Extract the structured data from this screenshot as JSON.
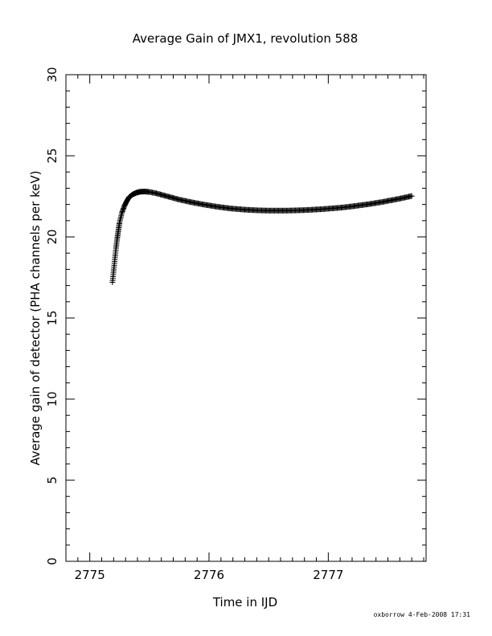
{
  "chart_data": {
    "type": "scatter",
    "title": "Average Gain of JMX1, revolution 588",
    "xlabel": "Time in IJD",
    "ylabel": "Average gain of detector (PHA channels per keV)",
    "xlim": [
      2774.8,
      2777.82
    ],
    "ylim": [
      0,
      30
    ],
    "xticks": [
      2775,
      2776,
      2777
    ],
    "yticks": [
      0,
      5,
      10,
      15,
      20,
      25,
      30
    ],
    "x_minor_step": 0.1,
    "y_minor_step": 1,
    "grid": false,
    "marker": "plus",
    "color": "#000000",
    "series": [
      {
        "x": [
          2775.19,
          2775.2,
          2775.21,
          2775.22,
          2775.23,
          2775.24,
          2775.25,
          2775.27,
          2775.29,
          2775.31,
          2775.33,
          2775.36,
          2775.39,
          2775.42,
          2775.46,
          2775.5,
          2775.55,
          2775.6,
          2775.65,
          2775.7,
          2775.75,
          2775.8,
          2775.85,
          2775.9,
          2775.95,
          2776.0,
          2776.05,
          2776.1,
          2776.15,
          2776.2,
          2776.25,
          2776.3,
          2776.35,
          2776.4,
          2776.45,
          2776.5,
          2776.55,
          2776.6,
          2776.65,
          2776.7,
          2776.75,
          2776.8,
          2776.85,
          2776.9,
          2776.95,
          2777.0,
          2777.05,
          2777.1,
          2777.15,
          2777.2,
          2777.25,
          2777.3,
          2777.35,
          2777.4,
          2777.45,
          2777.5,
          2777.55,
          2777.6,
          2777.65,
          2777.7
        ],
        "y": [
          17.2,
          17.9,
          18.6,
          19.3,
          19.9,
          20.4,
          20.9,
          21.5,
          21.9,
          22.2,
          22.45,
          22.62,
          22.72,
          22.78,
          22.8,
          22.77,
          22.7,
          22.6,
          22.5,
          22.4,
          22.3,
          22.22,
          22.14,
          22.07,
          22.0,
          21.94,
          21.88,
          21.83,
          21.78,
          21.74,
          21.71,
          21.68,
          21.66,
          21.64,
          21.63,
          21.62,
          21.62,
          21.62,
          21.62,
          21.63,
          21.64,
          21.65,
          21.67,
          21.69,
          21.71,
          21.74,
          21.77,
          21.8,
          21.84,
          21.88,
          21.93,
          21.98,
          22.03,
          22.09,
          22.15,
          22.22,
          22.29,
          22.36,
          22.44,
          22.52
        ]
      }
    ]
  },
  "footer": {
    "stamp": "oxborrow   4-Feb-2008 17:31"
  }
}
